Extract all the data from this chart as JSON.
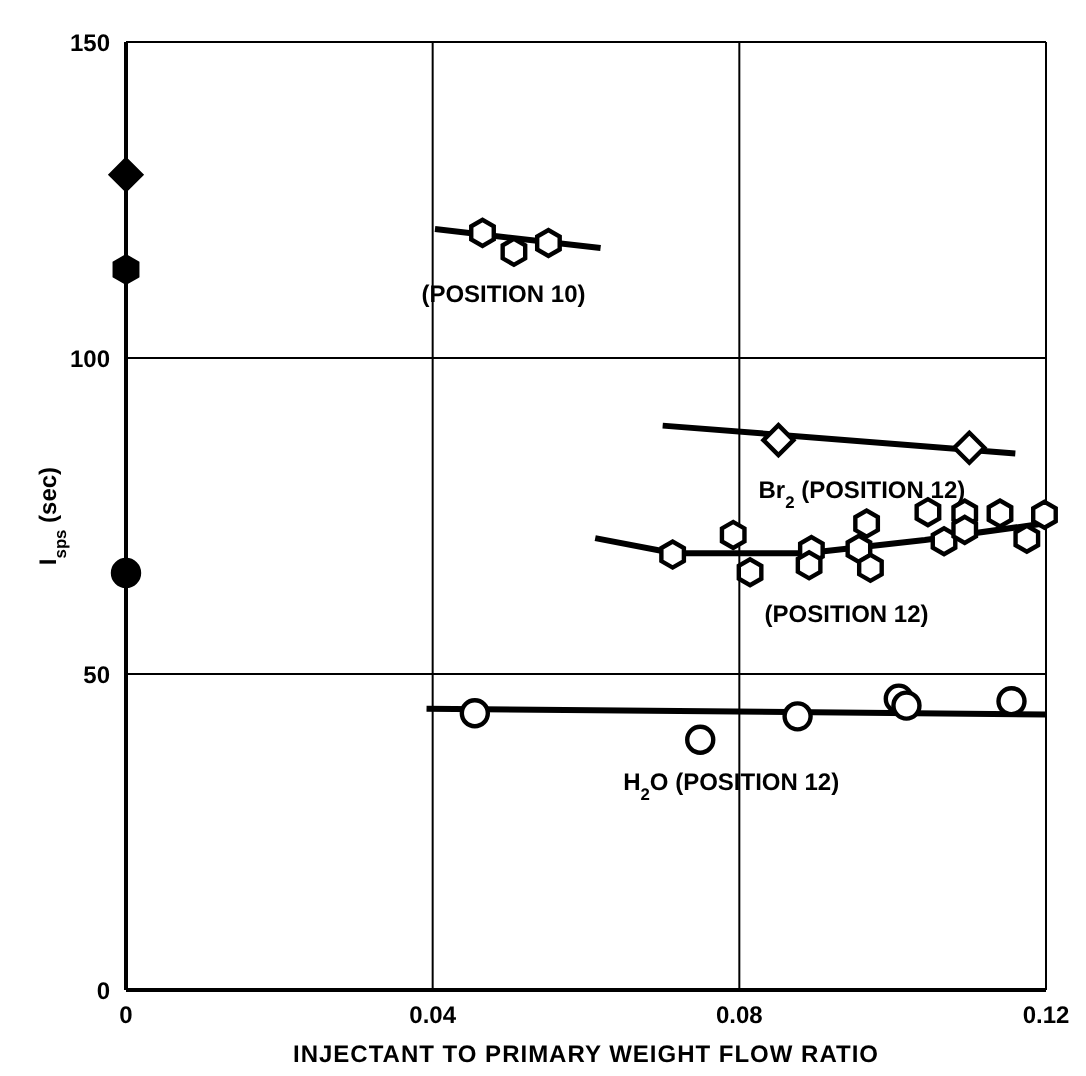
{
  "chart_data": {
    "type": "scatter",
    "xlabel": "INJECTANT TO PRIMARY WEIGHT FLOW RATIO",
    "ylabel": "I$_{sps}$ (sec)",
    "xlim": [
      0,
      0.12
    ],
    "ylim": [
      0,
      150
    ],
    "xticks": [
      0,
      0.04,
      0.08,
      0.12
    ],
    "yticks": [
      0,
      50,
      100,
      150
    ],
    "grid": true,
    "series": [
      {
        "type": "line",
        "color": "#000000",
        "marker": "none",
        "x": [
          0.0403,
          0.0619
        ],
        "values": [
          120.4,
          117.4
        ]
      },
      {
        "name": "(POSITION 10)",
        "color": "#000000",
        "x": [
          0.0465,
          0.0506,
          0.0551
        ],
        "values": [
          119.8,
          116.8,
          118.2
        ]
      },
      {
        "type": "line",
        "color": "#000000",
        "marker": "none",
        "x": [
          0.07,
          0.116
        ],
        "values": [
          89.3,
          84.9
        ]
      },
      {
        "name": "Br$_{2}$ (POSITION 12)",
        "color": "#000000",
        "marker": "diamond",
        "x": [
          0.0851,
          0.11
        ],
        "values": [
          87.0,
          85.8
        ]
      },
      {
        "type": "line",
        "color": "#000000",
        "marker": "none",
        "x": [
          0.0612,
          0.0715,
          0.0887,
          0.1042,
          0.1197
        ],
        "values": [
          71.5,
          69.1,
          69.1,
          71.2,
          73.8
        ]
      },
      {
        "name": "(POSITION 12)",
        "color": "#000000",
        "x": [
          0.0713,
          0.0792,
          0.0814,
          0.0894,
          0.0891,
          0.0966,
          0.0956,
          0.0971,
          0.1046,
          0.1067,
          0.1094,
          0.1094,
          0.114,
          0.1175,
          0.1198
        ],
        "values": [
          68.9,
          72.0,
          66.1,
          69.6,
          67.2,
          73.8,
          69.8,
          66.8,
          75.6,
          71.0,
          75.4,
          72.8,
          75.4,
          71.4,
          75.2
        ]
      },
      {
        "type": "line",
        "color": "#000000",
        "marker": "none",
        "x": [
          0.0392,
          0.12
        ],
        "values": [
          44.5,
          43.6
        ]
      },
      {
        "name": "H$_{2}$O (POSITION 12)",
        "color": "#000000",
        "marker": "circle",
        "x": [
          0.0455,
          0.0749,
          0.0876,
          0.1008,
          0.1018,
          0.1155
        ],
        "values": [
          43.8,
          39.6,
          43.3,
          46.1,
          45.0,
          45.7
        ]
      },
      {
        "color": "#000000",
        "marker": "diamond",
        "x": [
          0
        ],
        "values": [
          129
        ]
      },
      {
        "color": "#000000",
        "x": [
          0
        ],
        "values": [
          114
        ]
      },
      {
        "color": "#000000",
        "marker": "circle",
        "x": [
          0
        ],
        "values": [
          66
        ]
      }
    ]
  }
}
